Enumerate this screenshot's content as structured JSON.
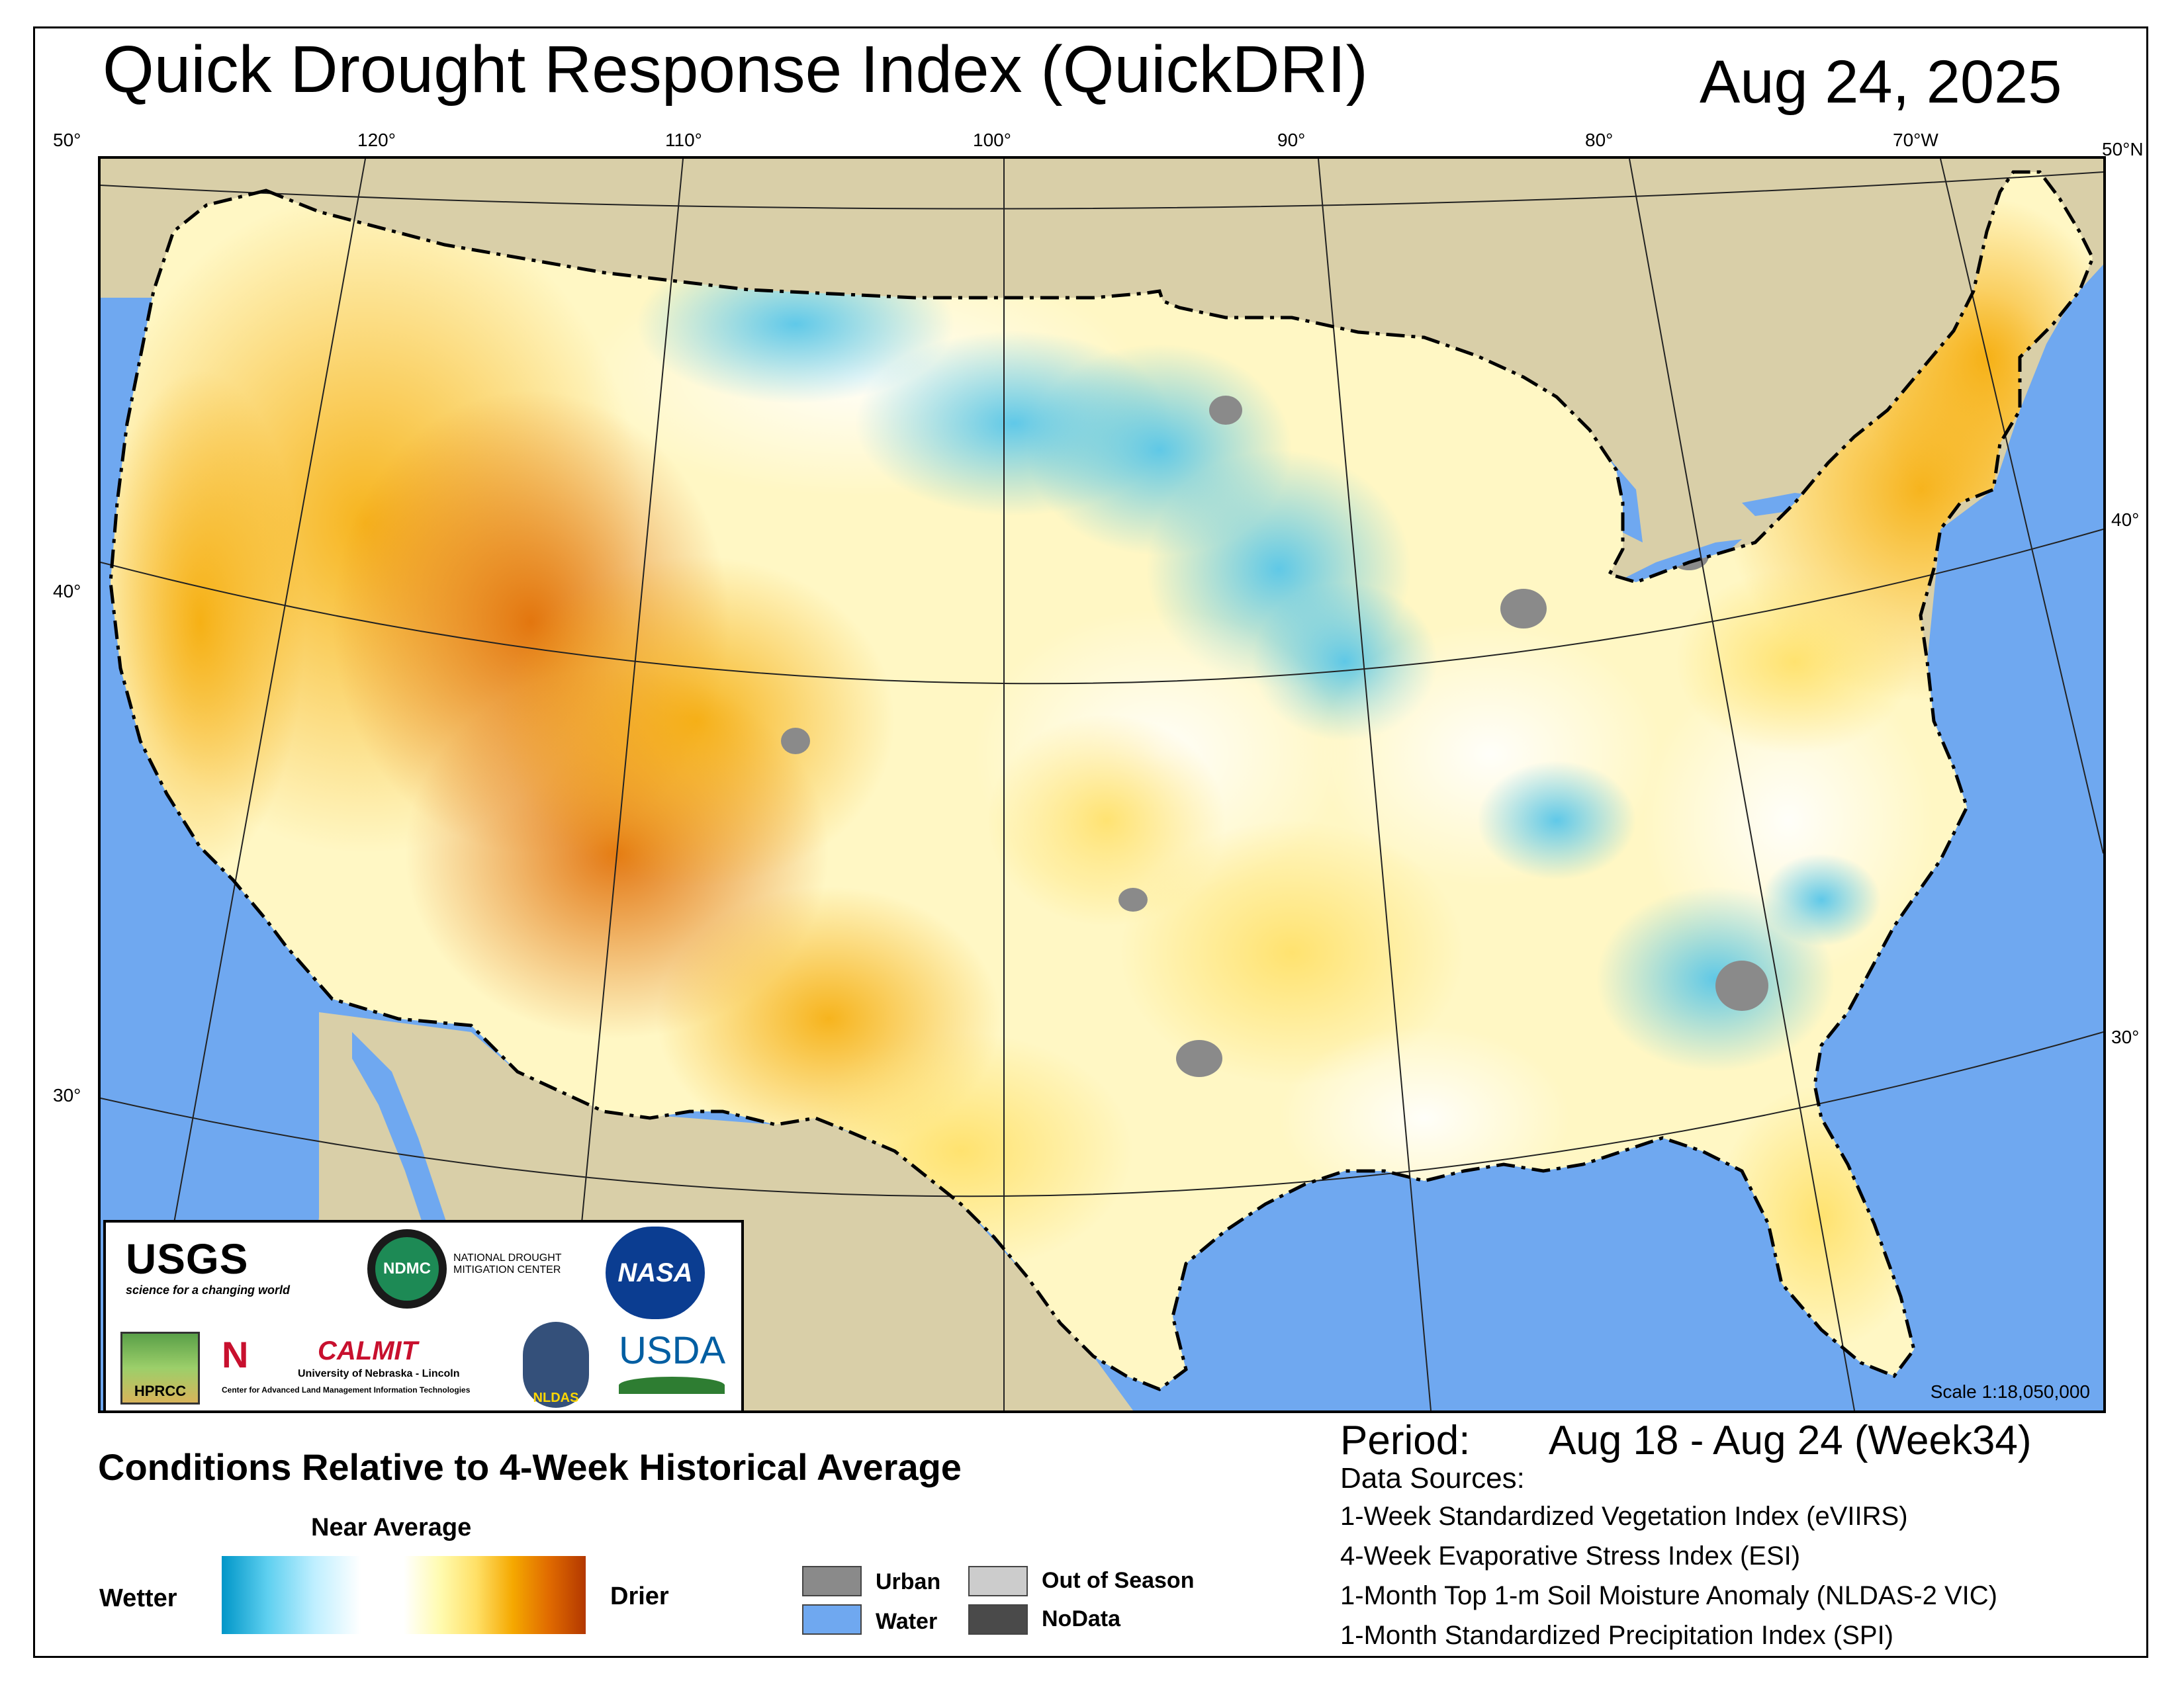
{
  "title": "Quick Drought Response Index (QuickDRI)",
  "date": "Aug 24, 2025",
  "graticule": {
    "top_lon": [
      "50°",
      "120°",
      "110°",
      "100°",
      "90°",
      "80°",
      "70°W",
      "50°N"
    ],
    "left_lat": [
      "40°",
      "30°"
    ],
    "right_lat": [
      "40°",
      "30°"
    ]
  },
  "scale": "Scale 1:18,050,000",
  "logos": {
    "usgs": "USGS",
    "usgs_tag": "science for a changing world",
    "ndmc": "NDMC",
    "ndmc_name_1": "NATIONAL DROUGHT",
    "ndmc_name_2": "MITIGATION CENTER",
    "nasa": "NASA",
    "hprcc": "HPRCC",
    "calmit": "CALMIT",
    "calmit_sub": "University of Nebraska - Lincoln",
    "calmit_sub2": "Center for Advanced Land Management Information Technologies",
    "nldas": "NLDAS",
    "usda": "USDA"
  },
  "legend": {
    "title": "Conditions Relative to 4-Week Historical Average",
    "near_average": "Near Average",
    "wetter": "Wetter",
    "drier": "Drier",
    "colors": {
      "wet_dark": "#0096c8",
      "wet_light": "#bfefff",
      "dry_light": "#fffbb0",
      "dry_mid": "#f5a800",
      "dry_dark": "#b33800",
      "urban": "#8a8a8a",
      "water": "#6fa8f0",
      "out_of_season": "#cccccc",
      "nodata": "#4a4a4a"
    },
    "categories": [
      {
        "label": "Urban",
        "color_key": "urban"
      },
      {
        "label": "Water",
        "color_key": "water"
      },
      {
        "label": "Out of Season",
        "color_key": "out_of_season"
      },
      {
        "label": "NoData",
        "color_key": "nodata"
      }
    ]
  },
  "period": {
    "label": "Period:",
    "value": "Aug 18 - Aug 24 (Week34)"
  },
  "data_sources": {
    "title": "Data Sources:",
    "items": [
      "1-Week Standardized Vegetation Index (eVIIRS)",
      "4-Week Evaporative Stress Index (ESI)",
      "1-Month Top 1-m Soil Moisture Anomaly (NLDAS-2 VIC)",
      "1-Month Standardized Precipitation Index (SPI)"
    ]
  }
}
